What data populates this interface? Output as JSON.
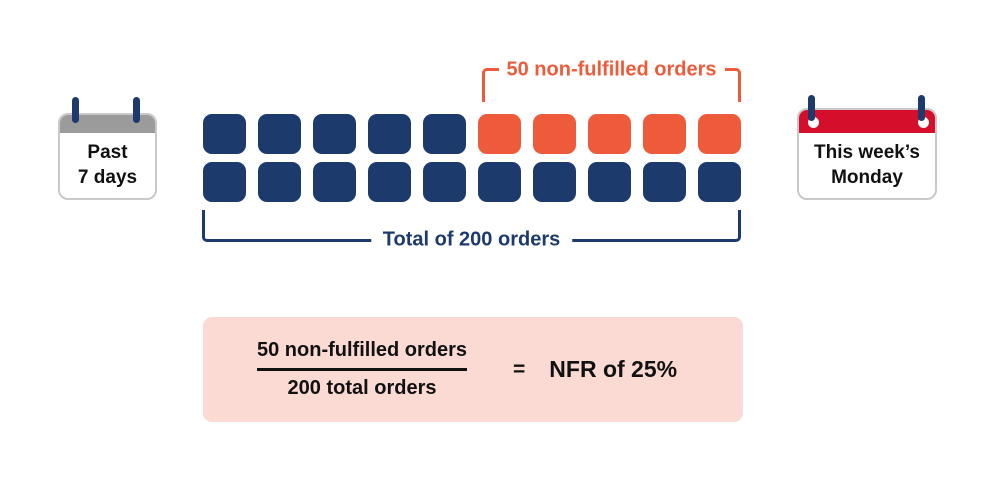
{
  "colors": {
    "navy": "#1C3A6B",
    "orange": "#EE5B3B",
    "red": "#D50E2B",
    "gray": "#9B9B9B",
    "pink": "#FADAD3",
    "border_gray": "#C9C9C9",
    "text_black": "#111111"
  },
  "calendars": {
    "left": {
      "line1": "Past",
      "line2": "7 days"
    },
    "right": {
      "line1": "This week’s",
      "line2": "Monday"
    }
  },
  "labels": {
    "non_fulfilled": "50 non-fulfilled orders",
    "total": "Total of 200 orders"
  },
  "grid": {
    "rows": [
      [
        "navy",
        "navy",
        "navy",
        "navy",
        "navy",
        "orange",
        "orange",
        "orange",
        "orange",
        "orange"
      ],
      [
        "navy",
        "navy",
        "navy",
        "navy",
        "navy",
        "navy",
        "navy",
        "navy",
        "navy",
        "navy"
      ]
    ]
  },
  "formula": {
    "numerator": "50 non-fulfilled orders",
    "denominator": "200 total orders",
    "equals": "=",
    "result": "NFR of 25%"
  }
}
